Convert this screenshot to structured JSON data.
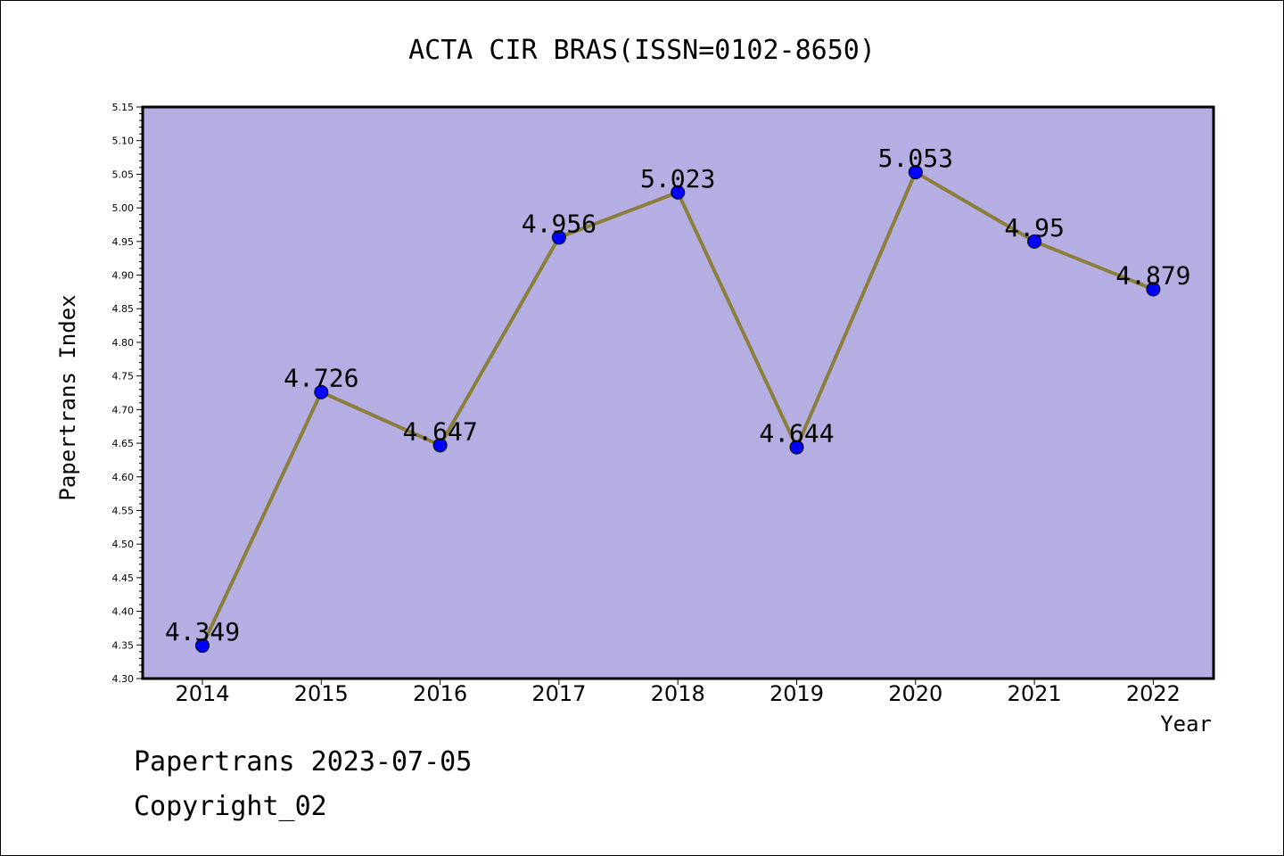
{
  "chart_data": {
    "type": "line",
    "title": "ACTA CIR BRAS(ISSN=0102-8650)",
    "xlabel": "Year",
    "ylabel": "Papertrans Index",
    "categories": [
      "2014",
      "2015",
      "2016",
      "2017",
      "2018",
      "2019",
      "2020",
      "2021",
      "2022"
    ],
    "series": [
      {
        "values": [
          4.349,
          4.726,
          4.647,
          4.956,
          5.023,
          4.644,
          5.053,
          4.95,
          4.879
        ],
        "data_labels": [
          "4.349",
          "4.726",
          "4.647",
          "4.956",
          "5.023",
          "4.644",
          "5.053",
          "4.95",
          "4.879"
        ],
        "line_color": "#8b7d3a",
        "marker_color": "#0000ff"
      }
    ],
    "ylim": [
      4.3,
      5.15
    ],
    "yticks": [
      "4.30",
      "4.35",
      "4.40",
      "4.45",
      "4.50",
      "4.55",
      "4.60",
      "4.65",
      "4.70",
      "4.75",
      "4.80",
      "4.85",
      "4.90",
      "4.95",
      "5.00",
      "5.05",
      "5.10",
      "5.15"
    ],
    "grid": false,
    "plot_background": "#b5aee2"
  },
  "footer": {
    "line1": "Papertrans 2023-07-05",
    "line2": "Copyright_02"
  }
}
